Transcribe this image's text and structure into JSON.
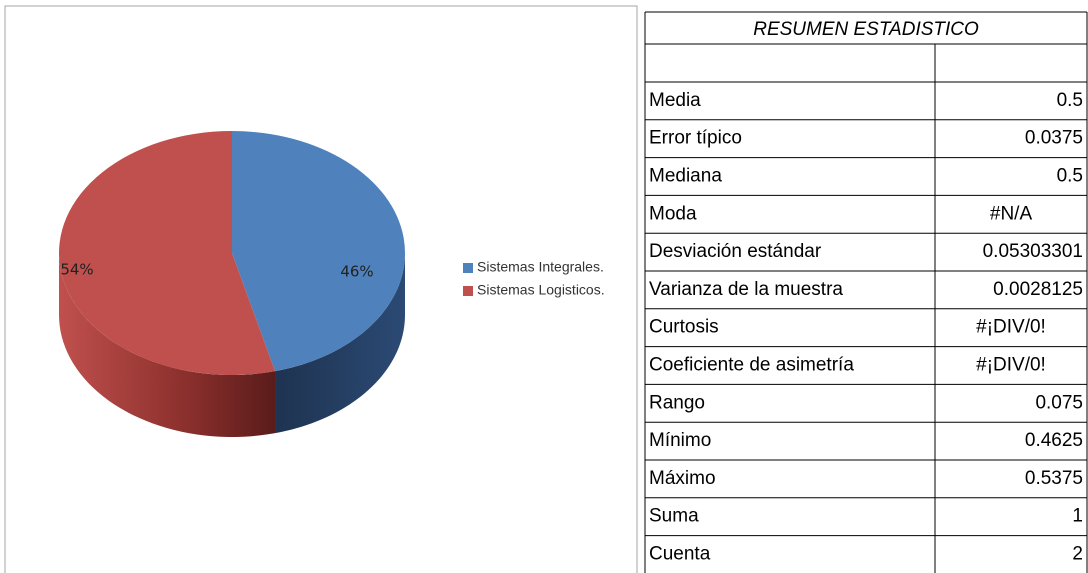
{
  "chart_data": {
    "type": "pie",
    "categories": [
      "Sistemas Integrales.",
      "Sistemas Logisticos."
    ],
    "values": [
      46,
      54
    ],
    "value_labels": [
      "46%",
      "54%"
    ],
    "colors": [
      "#4f81bd",
      "#c0504d"
    ],
    "legend": "right"
  },
  "table": {
    "title": "RESUMEN ESTADISTICO",
    "rows": [
      [
        "Media",
        "0.5"
      ],
      [
        "Error típico",
        "0.0375"
      ],
      [
        "Mediana",
        "0.5"
      ],
      [
        "Moda",
        "#N/A"
      ],
      [
        "Desviación estándar",
        "0.05303301"
      ],
      [
        "Varianza de la muestra",
        "0.0028125"
      ],
      [
        "Curtosis",
        "#¡DIV/0!"
      ],
      [
        "Coeficiente de asimetría",
        "#¡DIV/0!"
      ],
      [
        "Rango",
        "0.075"
      ],
      [
        "Mínimo",
        "0.4625"
      ],
      [
        "Máximo",
        "0.5375"
      ],
      [
        "Suma",
        "1"
      ],
      [
        "Cuenta",
        "2"
      ]
    ]
  }
}
